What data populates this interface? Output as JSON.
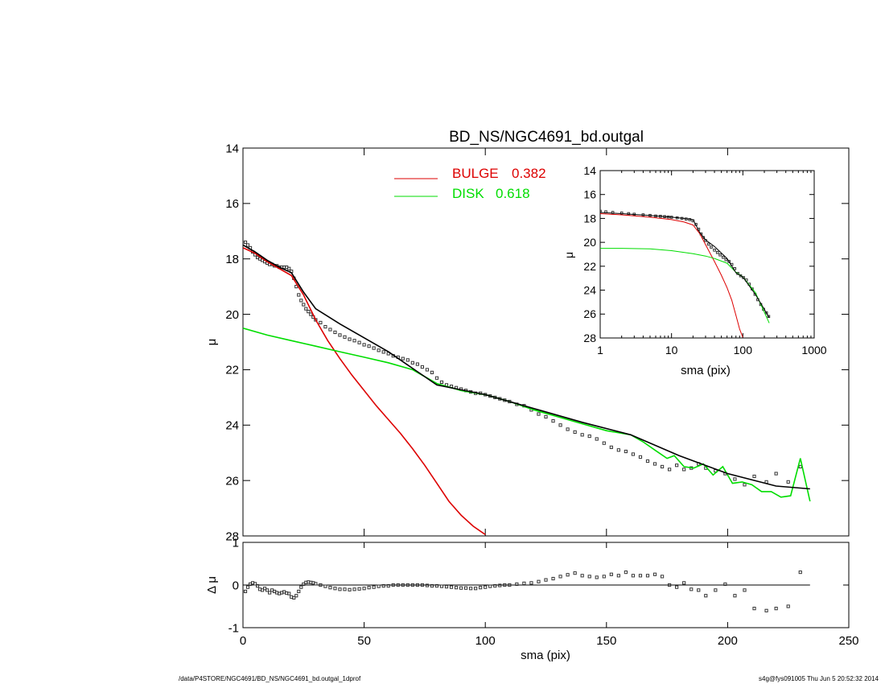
{
  "chart_data": [
    {
      "id": "main",
      "type": "scatter",
      "title": "BD_NS/NGC4691_bd.outgal",
      "ylabel": "μ",
      "xlim": [
        0,
        250
      ],
      "ylim": [
        28,
        14
      ],
      "y_inverted": true,
      "x_ticks": [
        0,
        50,
        100,
        150,
        200,
        250
      ],
      "x_tick_labels": [
        "0",
        "50",
        "100",
        "150",
        "200",
        "250"
      ],
      "y_ticks": [
        14,
        16,
        18,
        20,
        22,
        24,
        26,
        28
      ],
      "y_tick_labels": [
        "14",
        "16",
        "18",
        "20",
        "22",
        "24",
        "26",
        "28"
      ],
      "legend": {
        "placement": "top-center",
        "entries": [
          {
            "label": "BULGE",
            "value": "0.382",
            "color": "#dd0000"
          },
          {
            "label": "DISK",
            "value": "0.618",
            "color": "#00dd00"
          }
        ]
      },
      "series": [
        {
          "name": "BULGE",
          "style": "line",
          "color": "#dd0000",
          "x": [
            0,
            5,
            10,
            15,
            20,
            25,
            30,
            35,
            40,
            45,
            50,
            55,
            60,
            65,
            70,
            75,
            80,
            85,
            90,
            95,
            100
          ],
          "y": [
            17.6,
            17.8,
            18.1,
            18.35,
            18.6,
            19.3,
            20.2,
            20.95,
            21.6,
            22.2,
            22.75,
            23.3,
            23.8,
            24.3,
            24.85,
            25.45,
            26.1,
            26.75,
            27.25,
            27.65,
            27.95
          ]
        },
        {
          "name": "DISK",
          "style": "line",
          "color": "#00dd00",
          "x": [
            0,
            10,
            20,
            30,
            40,
            50,
            60,
            70,
            80,
            90,
            100,
            110,
            120,
            130,
            140,
            150,
            160,
            165,
            170,
            175,
            178,
            182,
            186,
            190,
            194,
            198,
            202,
            206,
            210,
            214,
            218,
            222,
            226,
            230,
            234
          ],
          "y": [
            20.5,
            20.75,
            20.95,
            21.15,
            21.35,
            21.55,
            21.75,
            22.0,
            22.5,
            22.75,
            22.9,
            23.15,
            23.45,
            23.7,
            23.95,
            24.2,
            24.35,
            24.6,
            24.9,
            25.2,
            25.1,
            25.5,
            25.55,
            25.4,
            25.8,
            25.5,
            26.1,
            26.05,
            26.15,
            26.4,
            26.4,
            26.6,
            26.55,
            25.2,
            26.75
          ]
        },
        {
          "name": "",
          "style": "line",
          "color": "#000000",
          "x": [
            0,
            5,
            10,
            15,
            20,
            25,
            30,
            40,
            60,
            80,
            100,
            120,
            140,
            160,
            180,
            200,
            220,
            234
          ],
          "y": [
            17.5,
            17.75,
            18.05,
            18.3,
            18.5,
            19.2,
            19.8,
            20.35,
            21.35,
            22.55,
            22.9,
            23.4,
            23.9,
            24.35,
            25.1,
            25.75,
            26.2,
            26.3
          ]
        },
        {
          "name": "",
          "style": "points",
          "color": "#333333",
          "x": [
            1,
            2,
            3,
            4,
            5,
            6,
            7,
            8,
            9,
            10,
            11,
            12,
            13,
            14,
            15,
            16,
            17,
            18,
            19,
            20,
            21,
            22,
            23,
            24,
            25,
            26,
            27,
            28,
            29,
            30,
            32,
            34,
            36,
            38,
            40,
            42,
            44,
            46,
            48,
            50,
            52,
            54,
            56,
            58,
            60,
            62,
            64,
            66,
            68,
            70,
            72,
            74,
            76,
            78,
            80,
            82,
            84,
            86,
            88,
            90,
            92,
            94,
            96,
            98,
            100,
            102,
            104,
            106,
            108,
            110,
            113,
            116,
            119,
            122,
            125,
            128,
            131,
            134,
            137,
            140,
            143,
            146,
            149,
            152,
            155,
            158,
            161,
            164,
            167,
            170,
            173,
            176,
            179,
            182,
            185,
            188,
            191,
            195,
            199,
            203,
            207,
            211,
            216,
            220,
            225,
            230
          ],
          "y": [
            17.4,
            17.5,
            17.6,
            17.75,
            17.85,
            17.95,
            18.0,
            18.05,
            18.1,
            18.15,
            18.2,
            18.2,
            18.25,
            18.25,
            18.3,
            18.3,
            18.3,
            18.3,
            18.35,
            18.45,
            18.7,
            19.0,
            19.3,
            19.5,
            19.65,
            19.8,
            19.9,
            20.0,
            20.1,
            20.2,
            20.3,
            20.45,
            20.55,
            20.65,
            20.75,
            20.82,
            20.9,
            20.95,
            21.02,
            21.1,
            21.15,
            21.22,
            21.3,
            21.36,
            21.42,
            21.5,
            21.55,
            21.6,
            21.65,
            21.75,
            21.8,
            21.9,
            22.0,
            22.1,
            22.3,
            22.45,
            22.55,
            22.6,
            22.65,
            22.7,
            22.75,
            22.8,
            22.85,
            22.85,
            22.9,
            22.95,
            23.0,
            23.05,
            23.1,
            23.15,
            23.25,
            23.3,
            23.45,
            23.6,
            23.7,
            23.85,
            24.0,
            24.15,
            24.25,
            24.35,
            24.4,
            24.5,
            24.65,
            24.8,
            24.9,
            24.95,
            25.05,
            25.15,
            25.3,
            25.4,
            25.5,
            25.6,
            25.45,
            25.6,
            25.55,
            25.4,
            25.55,
            25.65,
            25.75,
            25.95,
            26.15,
            25.85,
            26.05,
            25.75,
            26.05,
            25.5
          ]
        }
      ]
    },
    {
      "id": "residual",
      "type": "scatter",
      "xlabel": "sma (pix)",
      "ylabel": "Δ μ",
      "xlim": [
        0,
        250
      ],
      "ylim": [
        -1,
        1
      ],
      "x_ticks": [
        0,
        50,
        100,
        150,
        200,
        250
      ],
      "x_tick_labels": [
        "0",
        "50",
        "100",
        "150",
        "200",
        "250"
      ],
      "y_ticks": [
        -1,
        0,
        1
      ],
      "y_tick_labels": [
        "-1",
        "0",
        "1"
      ],
      "zero_line": {
        "x": [
          0,
          234
        ],
        "y": 0
      },
      "series": [
        {
          "name": "",
          "style": "points",
          "color": "#333333",
          "x": [
            1,
            2,
            3,
            4,
            5,
            6,
            7,
            8,
            9,
            10,
            11,
            12,
            13,
            14,
            15,
            16,
            17,
            18,
            19,
            20,
            21,
            22,
            23,
            24,
            25,
            26,
            27,
            28,
            29,
            30,
            32,
            34,
            36,
            38,
            40,
            42,
            44,
            46,
            48,
            50,
            52,
            54,
            56,
            58,
            60,
            62,
            64,
            66,
            68,
            70,
            72,
            74,
            76,
            78,
            80,
            82,
            84,
            86,
            88,
            90,
            92,
            94,
            96,
            98,
            100,
            102,
            104,
            106,
            108,
            110,
            113,
            116,
            119,
            122,
            125,
            128,
            131,
            134,
            137,
            140,
            143,
            146,
            149,
            152,
            155,
            158,
            161,
            164,
            167,
            170,
            173,
            176,
            179,
            182,
            185,
            188,
            191,
            195,
            199,
            203,
            207,
            211,
            216,
            220,
            225,
            230
          ],
          "y": [
            -0.15,
            -0.05,
            0.02,
            0.05,
            0.03,
            -0.02,
            -0.1,
            -0.12,
            -0.08,
            -0.12,
            -0.18,
            -0.12,
            -0.15,
            -0.18,
            -0.2,
            -0.18,
            -0.16,
            -0.19,
            -0.2,
            -0.28,
            -0.3,
            -0.25,
            -0.15,
            -0.05,
            0.02,
            0.06,
            0.07,
            0.06,
            0.05,
            0.03,
            0.0,
            -0.03,
            -0.06,
            -0.08,
            -0.1,
            -0.1,
            -0.11,
            -0.1,
            -0.09,
            -0.08,
            -0.06,
            -0.05,
            -0.03,
            -0.02,
            -0.02,
            0.0,
            0.0,
            0.0,
            0.0,
            0.0,
            0.0,
            0.0,
            -0.01,
            -0.02,
            -0.02,
            -0.03,
            -0.04,
            -0.05,
            -0.06,
            -0.07,
            -0.07,
            -0.08,
            -0.08,
            -0.06,
            -0.05,
            -0.03,
            -0.02,
            -0.01,
            0.0,
            0.0,
            0.02,
            0.04,
            0.05,
            0.08,
            0.12,
            0.15,
            0.2,
            0.24,
            0.28,
            0.22,
            0.2,
            0.18,
            0.2,
            0.25,
            0.22,
            0.3,
            0.22,
            0.22,
            0.22,
            0.25,
            0.2,
            0.0,
            -0.05,
            0.05,
            -0.1,
            -0.12,
            -0.25,
            -0.12,
            0.02,
            -0.25,
            -0.12,
            -0.55,
            -0.6,
            -0.55,
            -0.5,
            0.3
          ]
        }
      ]
    },
    {
      "id": "inset",
      "type": "scatter",
      "xlabel": "sma (pix)",
      "ylabel": "μ",
      "x_scale": "log",
      "xlim": [
        1,
        1000
      ],
      "ylim": [
        28,
        14
      ],
      "y_inverted": true,
      "x_ticks": [
        1,
        10,
        100,
        1000
      ],
      "x_tick_labels": [
        "1",
        "10",
        "100",
        "1000"
      ],
      "y_ticks": [
        14,
        16,
        18,
        20,
        22,
        24,
        26,
        28
      ],
      "y_tick_labels": [
        "14",
        "16",
        "18",
        "20",
        "22",
        "24",
        "26",
        "28"
      ],
      "series": [
        {
          "name": "BULGE",
          "style": "line",
          "color": "#dd0000",
          "x": [
            1,
            2,
            5,
            10,
            15,
            20,
            25,
            30,
            40,
            50,
            60,
            70,
            80,
            90,
            100
          ],
          "y": [
            17.6,
            17.7,
            17.9,
            18.1,
            18.3,
            18.55,
            19.3,
            20.2,
            21.6,
            22.75,
            23.8,
            24.85,
            26.1,
            27.25,
            27.95
          ]
        },
        {
          "name": "DISK",
          "style": "line",
          "color": "#00dd00",
          "x": [
            1,
            2,
            5,
            10,
            20,
            30,
            40,
            60,
            80,
            100,
            150,
            234
          ],
          "y": [
            20.5,
            20.5,
            20.55,
            20.7,
            20.95,
            21.15,
            21.35,
            21.75,
            22.5,
            22.9,
            24.2,
            26.75
          ]
        },
        {
          "name": "",
          "style": "line",
          "color": "#000000",
          "x": [
            1,
            2,
            5,
            10,
            15,
            20,
            25,
            30,
            40,
            60,
            80,
            100,
            150,
            234
          ],
          "y": [
            17.5,
            17.6,
            17.75,
            17.9,
            18.0,
            18.1,
            19.2,
            19.8,
            20.35,
            21.35,
            22.55,
            22.9,
            24.35,
            26.3
          ]
        },
        {
          "name": "",
          "style": "points",
          "color": "#333333",
          "x": [
            1,
            1.2,
            1.5,
            2,
            2.5,
            3,
            4,
            5,
            6,
            7,
            8,
            9,
            10,
            12,
            14,
            16,
            18,
            20,
            22,
            24,
            26,
            28,
            30,
            33,
            36,
            40,
            44,
            48,
            53,
            58,
            64,
            70,
            77,
            85,
            93,
            102,
            112,
            123,
            135,
            148,
            162,
            178,
            195,
            214,
            230
          ],
          "y": [
            17.4,
            17.45,
            17.5,
            17.55,
            17.6,
            17.65,
            17.7,
            17.75,
            17.8,
            17.82,
            17.85,
            17.88,
            17.9,
            17.95,
            18.0,
            18.05,
            18.1,
            18.2,
            18.5,
            18.9,
            19.3,
            19.6,
            19.85,
            20.15,
            20.4,
            20.65,
            20.85,
            21.05,
            21.25,
            21.45,
            21.6,
            21.85,
            22.2,
            22.6,
            22.8,
            22.95,
            23.15,
            23.5,
            23.9,
            24.35,
            24.8,
            25.2,
            25.6,
            25.9,
            26.2
          ]
        }
      ]
    }
  ],
  "footer": {
    "left": "/data/P4STORE/NGC4691/BD_NS/NGC4691_bd.outgal_1dprof",
    "right": "s4g@fys091005  Thu Jun  5 20:52:32 2014"
  }
}
